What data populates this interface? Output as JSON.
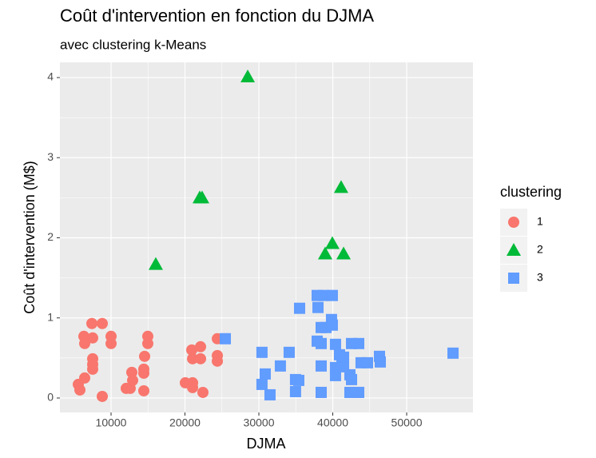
{
  "chart_data": {
    "type": "scatter",
    "title": "Coût d'intervention en fonction du DJMA",
    "subtitle": "avec clustering k-Means",
    "x_label": "DJMA",
    "y_label": "Coût d'intervention (M$)",
    "legend_title": "clustering",
    "legend_position": "right",
    "grid": true,
    "xlim": [
      3080,
      58970
    ],
    "ylim": [
      -0.18,
      4.19
    ],
    "xticks": [
      10000,
      20000,
      30000,
      40000,
      50000
    ],
    "yticks": [
      0,
      1,
      2,
      3,
      4
    ],
    "series": [
      {
        "name": "1",
        "color": "#F8766D",
        "shape": "circle",
        "x": [
          5567,
          5783,
          6324,
          6432,
          6432,
          7405,
          7513,
          7513,
          7513,
          7513,
          8810,
          8810,
          10000,
          10000,
          12050,
          12590,
          12810,
          12920,
          14430,
          14430,
          14430,
          14540,
          14970,
          14970,
          20050,
          20920,
          21030,
          21030,
          21030,
          22110,
          22110,
          22430,
          24380,
          24380,
          24380
        ],
        "values": [
          0.17,
          0.1,
          0.77,
          0.68,
          0.25,
          0.93,
          0.75,
          0.49,
          0.42,
          0.36,
          0.93,
          0.02,
          0.77,
          0.68,
          0.12,
          0.12,
          0.32,
          0.22,
          0.36,
          0.31,
          0.09,
          0.52,
          0.77,
          0.68,
          0.19,
          0.6,
          0.49,
          0.19,
          0.13,
          0.64,
          0.49,
          0.07,
          0.46,
          0.53,
          0.74
        ]
      },
      {
        "name": "2",
        "color": "#00BA38",
        "shape": "triangle",
        "x": [
          28490,
          22000,
          22320,
          16050,
          41130,
          39940,
          38970,
          41460
        ],
        "values": [
          4.01,
          2.5,
          2.5,
          1.67,
          2.63,
          1.93,
          1.8,
          1.8
        ]
      },
      {
        "name": "3",
        "color": "#619CFF",
        "shape": "square",
        "x": [
          25460,
          30420,
          30860,
          30420,
          31510,
          32910,
          34100,
          34960,
          34960,
          35400,
          35510,
          37890,
          38000,
          38750,
          39940,
          37890,
          38430,
          38430,
          38430,
          38430,
          39080,
          39830,
          39940,
          40370,
          40370,
          40370,
          40910,
          41240,
          41460,
          41460,
          42320,
          42320,
          42540,
          42540,
          43510,
          43510,
          43830,
          44700,
          46320,
          46430,
          56270
        ],
        "values": [
          0.74,
          0.57,
          0.3,
          0.17,
          0.04,
          0.4,
          0.57,
          0.23,
          0.08,
          0.22,
          1.12,
          1.28,
          1.13,
          1.28,
          1.28,
          0.71,
          0.68,
          0.4,
          0.07,
          0.88,
          0.88,
          0.98,
          0.91,
          0.67,
          0.38,
          0.28,
          0.54,
          0.46,
          0.39,
          0.51,
          0.07,
          0.29,
          0.23,
          0.68,
          0.68,
          0.07,
          0.44,
          0.44,
          0.52,
          0.45,
          0.56
        ]
      }
    ]
  }
}
